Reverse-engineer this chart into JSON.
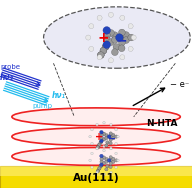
{
  "bg_color": "#ffffff",
  "au_color": "#f0d800",
  "au_label": "Au(111)",
  "nhta_label": "N-HTA",
  "ellipse_color": "#ee2222",
  "pump_label": "pump",
  "probe_label": "probe",
  "hv1_label": "hν₁",
  "hv2_label": "hν₂",
  "eminus_label": "− e⁻",
  "light_color_pump": "#22bbee",
  "light_color_probe": "#2233cc",
  "plus_color": "#ee0000",
  "minus_color": "#2233bb",
  "mol_center_color": "#bbbbdd",
  "gray_atom": "#999999",
  "blue_atom": "#2244bb",
  "white_atom": "#dddddd",
  "dark_gray_atom": "#555555"
}
